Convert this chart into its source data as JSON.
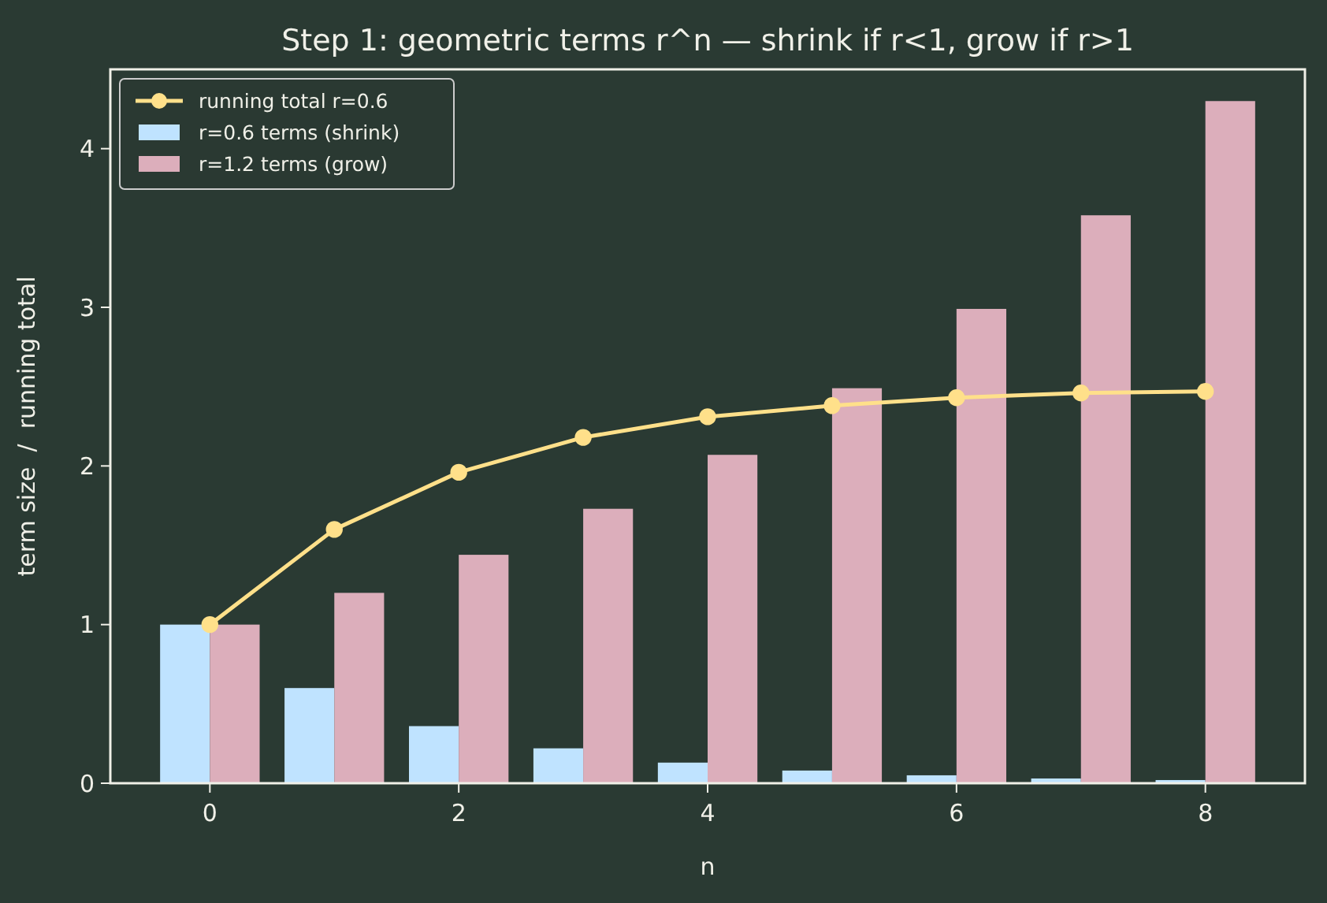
{
  "chart_data": {
    "type": "bar",
    "title": "Step 1: geometric terms r^n — shrink if r<1, grow if r>1",
    "xlabel": "n",
    "ylabel": "term size  /  running total",
    "x": [
      0,
      1,
      2,
      3,
      4,
      5,
      6,
      7,
      8
    ],
    "series": [
      {
        "name": "running total r=0.6",
        "type": "line",
        "color": "#ffe08a",
        "values": [
          1,
          1.6,
          1.96,
          2.18,
          2.31,
          2.38,
          2.43,
          2.46,
          2.47
        ]
      },
      {
        "name": "r=0.6 terms (shrink)",
        "color": "#bfe3ff",
        "values": [
          1,
          0.6,
          0.36,
          0.22,
          0.13,
          0.08,
          0.05,
          0.03,
          0.02
        ]
      },
      {
        "name": "r=1.2 terms (grow)",
        "color": "#dcaebb",
        "values": [
          1,
          1.2,
          1.44,
          1.73,
          2.07,
          2.49,
          2.99,
          3.58,
          4.3
        ]
      }
    ],
    "xlim": [
      -0.8,
      8.8
    ],
    "xticks": [
      0,
      2,
      4,
      6,
      8
    ],
    "ylim": [
      0,
      4.5
    ],
    "yticks": [
      0,
      1,
      2,
      3,
      4
    ],
    "grid": false,
    "legend": "top left",
    "marker": "circle",
    "line_style": "solid"
  }
}
